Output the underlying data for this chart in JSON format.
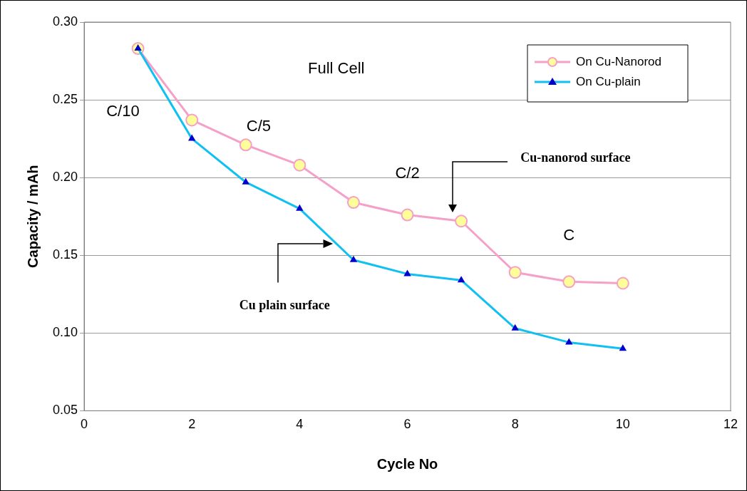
{
  "chart_data": {
    "type": "line",
    "xlabel": "Cycle No",
    "ylabel": "Capacity / mAh",
    "x": [
      1,
      2,
      3,
      4,
      5,
      6,
      7,
      8,
      9,
      10
    ],
    "series": [
      {
        "name": "On Cu-Nanorod",
        "color": "#f4a0c8",
        "marker": "circle",
        "values": [
          0.283,
          0.237,
          0.221,
          0.208,
          0.184,
          0.176,
          0.172,
          0.139,
          0.133,
          0.132
        ]
      },
      {
        "name": "On Cu-plain",
        "color": "#10c0f0",
        "marker": "triangle",
        "values": [
          0.283,
          0.225,
          0.197,
          0.18,
          0.147,
          0.138,
          0.134,
          0.103,
          0.094,
          0.09
        ]
      }
    ],
    "xlim": [
      0,
      12
    ],
    "xticks": [
      0,
      2,
      4,
      6,
      8,
      10,
      12
    ],
    "ylim": [
      0.05,
      0.3
    ],
    "yticks": [
      {
        "value": 0.05,
        "label": "0.05"
      },
      {
        "value": 0.1,
        "label": "0.10"
      },
      {
        "value": 0.15,
        "label": "0.15"
      },
      {
        "value": 0.2,
        "label": "0.20"
      },
      {
        "value": 0.25,
        "label": "0.25"
      },
      {
        "value": 0.3,
        "label": "0.30"
      }
    ],
    "grid": "y",
    "legend": "top right",
    "line_style": "solid",
    "annotations": [
      "Full Cell",
      "C/10",
      "C/5",
      "C/2",
      "C",
      "Cu-nanorod surface",
      "Cu plain surface"
    ]
  }
}
